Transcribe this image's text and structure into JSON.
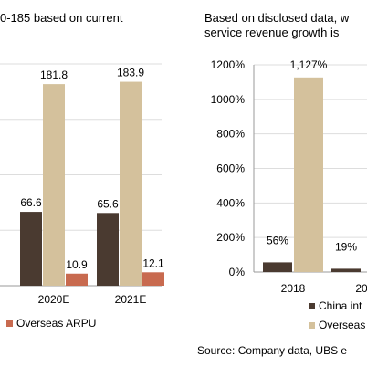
{
  "left_chart": {
    "title_line1": "0-185 based on current",
    "legend": [
      {
        "label": "Overseas ARPU",
        "color": "#c86a4f"
      }
    ]
  },
  "right_chart": {
    "title_line1": "Based on disclosed data, w",
    "title_line2": "service revenue growth is",
    "legend": [
      {
        "label": "China int",
        "color": "#4a3a30"
      },
      {
        "label": "Overseas",
        "color": "#d4c19c"
      }
    ]
  },
  "source": "Source: Company data, UBS e",
  "chart_data": [
    {
      "type": "bar",
      "title": "",
      "categories": [
        "",
        "2020E",
        "2021E"
      ],
      "series": [
        {
          "name": "",
          "color": "#4a3a30",
          "values": [
            null,
            66.6,
            65.6
          ]
        },
        {
          "name": "",
          "color": "#d4c19c",
          "values": [
            null,
            181.8,
            183.9
          ]
        },
        {
          "name": "Overseas ARPU",
          "color": "#c86a4f",
          "values": [
            null,
            10.9,
            12.1
          ]
        }
      ],
      "ylim": [
        0,
        200
      ],
      "grid": true,
      "legend": "bottom"
    },
    {
      "type": "bar",
      "title": "",
      "categories": [
        "2018",
        "20"
      ],
      "series": [
        {
          "name": "China int",
          "color": "#4a3a30",
          "values": [
            56,
            19
          ]
        },
        {
          "name": "Overseas",
          "color": "#d4c19c",
          "values": [
            1127,
            null
          ]
        }
      ],
      "data_labels": [
        [
          "56%",
          "19%"
        ],
        [
          "1,127%",
          ""
        ]
      ],
      "yticks": [
        0,
        200,
        400,
        600,
        800,
        1000,
        1200
      ],
      "yticklabels": [
        "0%",
        "200%",
        "400%",
        "600%",
        "800%",
        "1000%",
        "1200%"
      ],
      "ylim": [
        0,
        1200
      ],
      "grid": true,
      "legend": "bottom"
    }
  ]
}
